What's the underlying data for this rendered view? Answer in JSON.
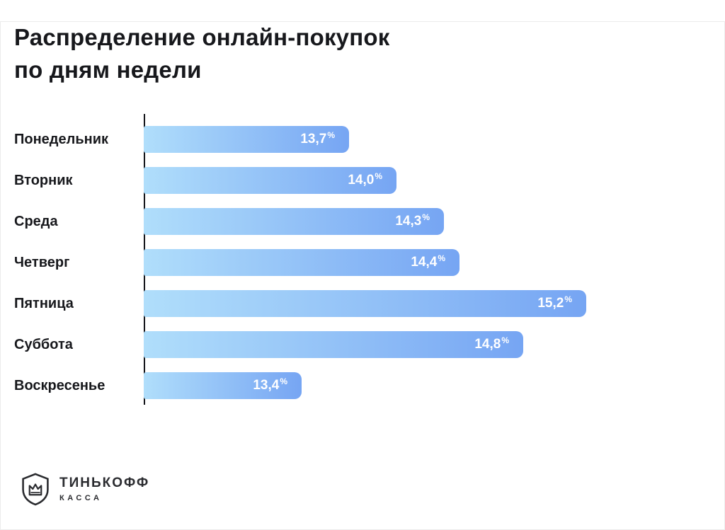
{
  "title": {
    "line1": "Распределение онлайн-покупок",
    "line2": "по дням недели"
  },
  "chart_data": {
    "type": "bar",
    "orientation": "horizontal",
    "title": "Распределение онлайн-покупок по дням недели",
    "categories": [
      "Понедельник",
      "Вторник",
      "Среда",
      "Четверг",
      "Пятница",
      "Суббота",
      "Воскресенье"
    ],
    "values": [
      13.7,
      14.0,
      14.3,
      14.4,
      15.2,
      14.8,
      13.4
    ],
    "value_labels": [
      "13,7",
      "14,0",
      "14,3",
      "14,4",
      "15,2",
      "14,8",
      "13,4"
    ],
    "unit": "%",
    "xlim": [
      12.4,
      15.2
    ],
    "bar_gradient": [
      "#b0defb",
      "#76a5f3"
    ],
    "value_label_color": "#ffffff",
    "grid": false,
    "legend": false
  },
  "footer": {
    "brand": "ТИНЬКОФФ",
    "sub": "КАССА"
  }
}
